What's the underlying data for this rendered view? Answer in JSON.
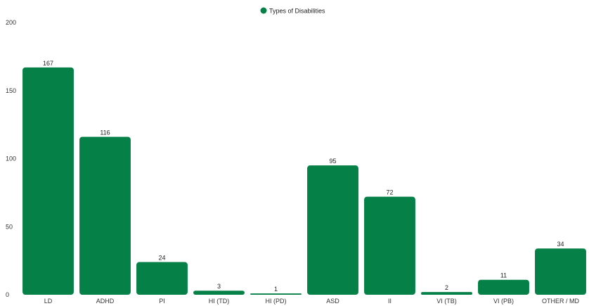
{
  "chart_data": {
    "type": "bar",
    "legend": {
      "label": "Types of Disabilities",
      "position": "top-center"
    },
    "categories": [
      "LD",
      "ADHD",
      "PI",
      "HI (TD)",
      "HI (PD)",
      "ASD",
      "II",
      "VI (TB)",
      "VI (PB)",
      "OTHER / MD"
    ],
    "series": [
      {
        "name": "Types of Disabilities",
        "color": "#058148",
        "values": [
          167,
          116,
          24,
          3,
          1,
          95,
          72,
          2,
          11,
          34
        ]
      }
    ],
    "ylim": [
      0,
      200
    ],
    "yticks": [
      0,
      50,
      100,
      150,
      200
    ],
    "grid": false,
    "data_labels": true
  }
}
